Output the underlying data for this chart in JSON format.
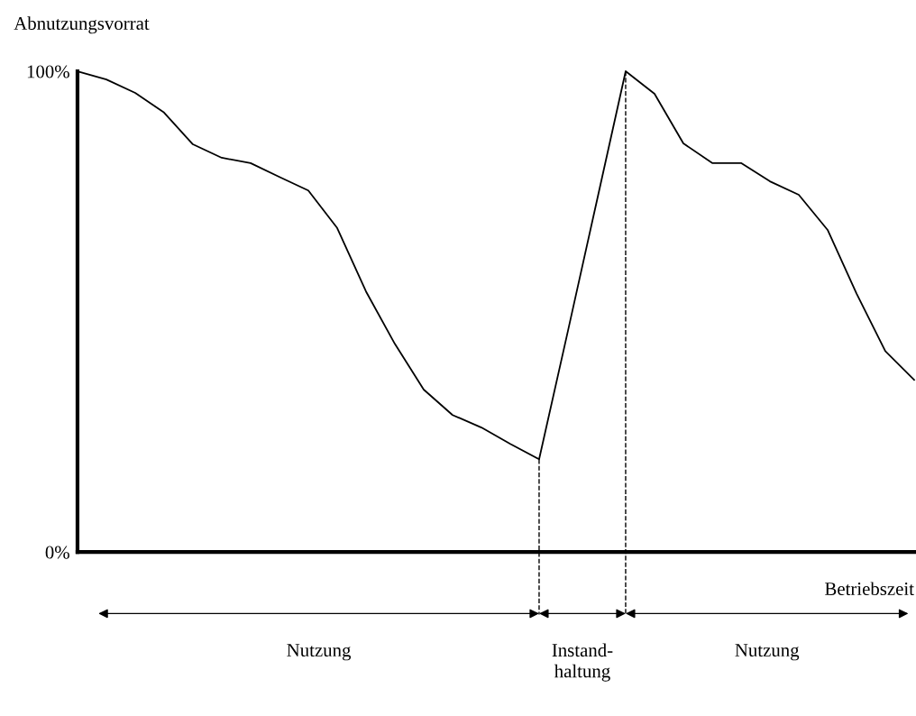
{
  "chart_data": {
    "type": "line",
    "xlabel": "Betriebszeit",
    "ylabel": "Abnutzungsvorrat",
    "categories": [
      null,
      null,
      null,
      null,
      null,
      null,
      null,
      null,
      null,
      null,
      null,
      null,
      null,
      null,
      null,
      null,
      null,
      null,
      null,
      null,
      null,
      null,
      null,
      null,
      null,
      null,
      null,
      null,
      null,
      null
    ],
    "series": [
      {
        "color": "#000000",
        "values": [
          100,
          98.3,
          95.5,
          91.4,
          84.8,
          82,
          80.9,
          78,
          75.2,
          67.4,
          54.2,
          43.3,
          33.8,
          28.5,
          25.9,
          22.5,
          19.3,
          46,
          73,
          100,
          95.3,
          85,
          80.9,
          80.9,
          77.1,
          74.3,
          67,
          53.8,
          41.8,
          35.8
        ]
      }
    ],
    "ylim": [
      0,
      100
    ],
    "yticks": [
      {
        "value": 0,
        "label": "0%"
      },
      {
        "value": 100,
        "label": "100%"
      }
    ],
    "tick_labels": "y",
    "grid": false,
    "marker": "none",
    "line_style": "solid",
    "annotations": [
      "Nutzung",
      "Instand-\nhaltung",
      "Nutzung"
    ]
  }
}
